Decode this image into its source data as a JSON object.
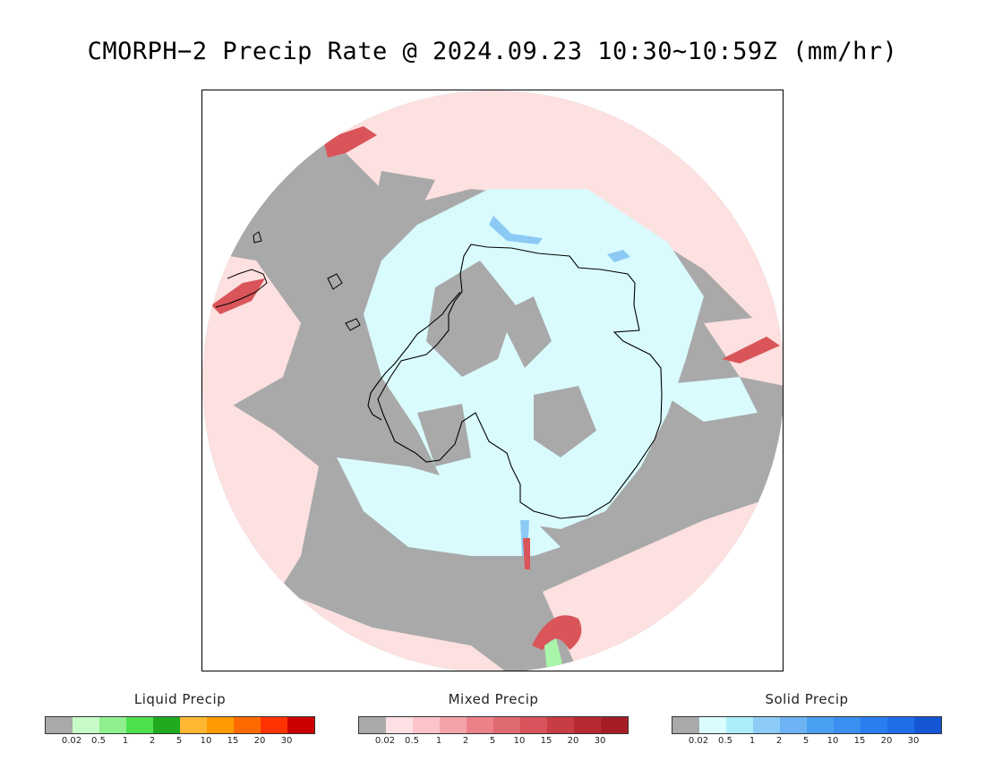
{
  "title": "CMORPH−2 Precip Rate @ 2024.09.23 10:30∼10:59Z (mm/hr)",
  "map": {
    "colors": {
      "no_precip": "#a9a9a9",
      "mixed_light": "#fde0e0",
      "solid_light": "#d9fbfd",
      "solid_mid": "#8ccaf5",
      "mixed_heavy": "#d9555a",
      "liquid_light": "#a9f5a9",
      "coastline": "#000000"
    }
  },
  "legends": [
    {
      "title": "Liquid Precip",
      "colors": [
        "#a9a9a9",
        "#c7fbc7",
        "#8ff08f",
        "#4fe04f",
        "#1faa1f",
        "#ffb733",
        "#ff9a00",
        "#ff6a00",
        "#ff3300",
        "#cc0000"
      ],
      "ticks": [
        "0.02",
        "0.5",
        "1",
        "2",
        "5",
        "10",
        "15",
        "20",
        "30"
      ]
    },
    {
      "title": "Mixed Precip",
      "colors": [
        "#a9a9a9",
        "#fde0e4",
        "#fbc4ca",
        "#f4a3a9",
        "#ec8189",
        "#e06a72",
        "#d8535b",
        "#c83c43",
        "#b82a31",
        "#a51e25"
      ],
      "ticks": [
        "0.02",
        "0.5",
        "1",
        "2",
        "5",
        "10",
        "15",
        "20",
        "30"
      ]
    },
    {
      "title": "Solid Precip",
      "colors": [
        "#a9a9a9",
        "#dafcfd",
        "#aeeefa",
        "#8cccf7",
        "#6db3f4",
        "#4aa0f0",
        "#3a8ff0",
        "#2a7ef0",
        "#1f6de8",
        "#1556d5"
      ],
      "ticks": [
        "0.02",
        "0.5",
        "1",
        "2",
        "5",
        "10",
        "15",
        "20",
        "30"
      ]
    }
  ]
}
